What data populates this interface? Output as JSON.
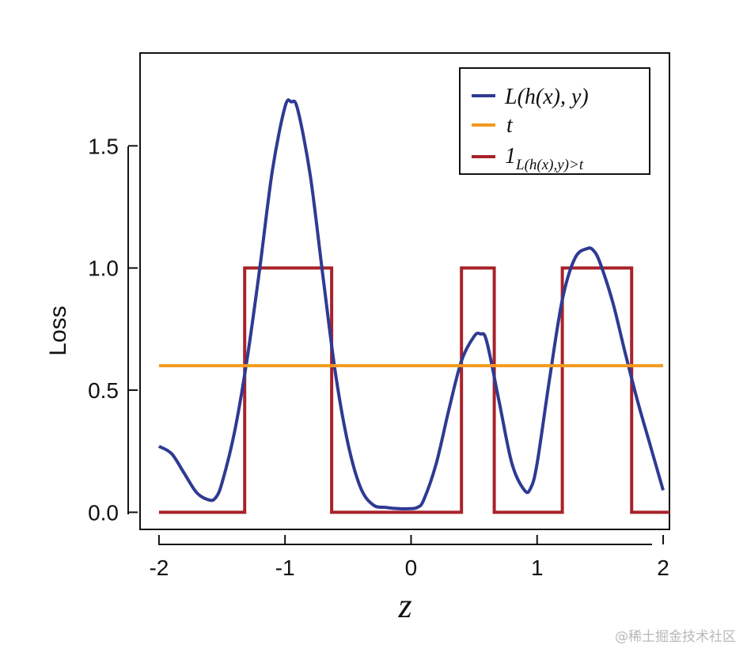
{
  "chart_data": {
    "type": "line",
    "xlabel": "z",
    "ylabel": "Loss",
    "xlim": [
      -2.15,
      2.05
    ],
    "ylim": [
      -0.07,
      1.88
    ],
    "xticks": [
      -2,
      -1,
      0,
      1,
      2
    ],
    "xtick_labels": [
      "-2",
      "-1",
      "0",
      "1",
      "2"
    ],
    "yticks": [
      0.0,
      0.5,
      1.0,
      1.5
    ],
    "ytick_labels": [
      "0.0",
      "0.5",
      "1.0",
      "1.5"
    ],
    "grid": false,
    "legend_position": "top-right",
    "series": [
      {
        "name": "L(h(x), y)",
        "color": "#2e3a93",
        "x": [
          -2.0,
          -1.9,
          -1.8,
          -1.7,
          -1.6,
          -1.55,
          -1.5,
          -1.4,
          -1.3,
          -1.2,
          -1.1,
          -1.0,
          -0.95,
          -0.9,
          -0.8,
          -0.7,
          -0.6,
          -0.5,
          -0.4,
          -0.3,
          -0.2,
          -0.1,
          0.0,
          0.05,
          0.1,
          0.2,
          0.3,
          0.4,
          0.5,
          0.55,
          0.6,
          0.7,
          0.8,
          0.9,
          0.95,
          1.0,
          1.1,
          1.2,
          1.3,
          1.4,
          1.45,
          1.5,
          1.6,
          1.7,
          1.8,
          1.9,
          2.0
        ],
        "y": [
          0.27,
          0.24,
          0.16,
          0.08,
          0.05,
          0.06,
          0.12,
          0.33,
          0.63,
          1.0,
          1.4,
          1.66,
          1.68,
          1.65,
          1.38,
          0.97,
          0.57,
          0.28,
          0.1,
          0.03,
          0.02,
          0.015,
          0.015,
          0.02,
          0.05,
          0.2,
          0.42,
          0.62,
          0.72,
          0.73,
          0.7,
          0.45,
          0.2,
          0.09,
          0.1,
          0.2,
          0.55,
          0.87,
          1.04,
          1.08,
          1.07,
          1.02,
          0.86,
          0.65,
          0.45,
          0.27,
          0.09
        ]
      },
      {
        "name": "t",
        "color": "#f39a1e",
        "x": [
          -2.0,
          2.0
        ],
        "y": [
          0.6,
          0.6
        ]
      },
      {
        "name": "1_{L(h(x),y)>t}",
        "color": "#a8222a",
        "x": [
          -2.0,
          -1.32,
          -1.32,
          -0.63,
          -0.63,
          0.4,
          0.4,
          0.66,
          0.66,
          1.2,
          1.2,
          1.75,
          1.75,
          2.05
        ],
        "y": [
          0,
          0,
          1,
          1,
          0,
          0,
          1,
          1,
          0,
          0,
          1,
          1,
          0,
          0
        ]
      }
    ]
  },
  "legend": {
    "entry1_main": "L(h(x), y)",
    "entry2_main": "t",
    "entry3_main": "1",
    "entry3_sub": "L(h(x),y)>t"
  },
  "watermark": "@稀土掘金技术社区"
}
